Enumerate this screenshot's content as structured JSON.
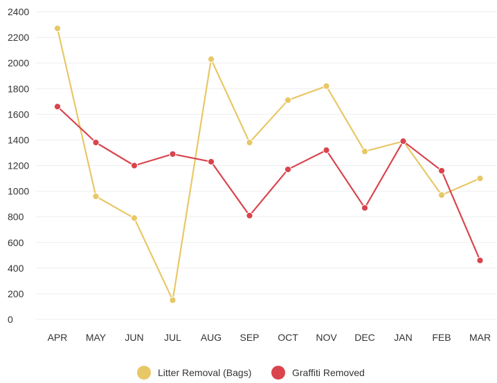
{
  "chart_data": {
    "type": "line",
    "title": "",
    "xlabel": "",
    "ylabel": "",
    "categories": [
      "APR",
      "MAY",
      "JUN",
      "JUL",
      "AUG",
      "SEP",
      "OCT",
      "NOV",
      "DEC",
      "JAN",
      "FEB",
      "MAR"
    ],
    "y_ticks": [
      "0",
      "200",
      "400",
      "600",
      "800",
      "1000",
      "1200",
      "1400",
      "1600",
      "1800",
      "2000",
      "2200",
      "2400"
    ],
    "ylim": [
      0,
      2400
    ],
    "grid": true,
    "legend_position": "bottom",
    "series": [
      {
        "name": "Litter Removal (Bags)",
        "color": "#e8c766",
        "values": [
          2270,
          960,
          790,
          150,
          2030,
          1380,
          1710,
          1820,
          1310,
          1390,
          970,
          1100
        ]
      },
      {
        "name": "Graffiti Removed",
        "color": "#d9444d",
        "values": [
          1660,
          1380,
          1200,
          1290,
          1230,
          810,
          1170,
          1320,
          870,
          1390,
          1160,
          460
        ]
      }
    ]
  }
}
